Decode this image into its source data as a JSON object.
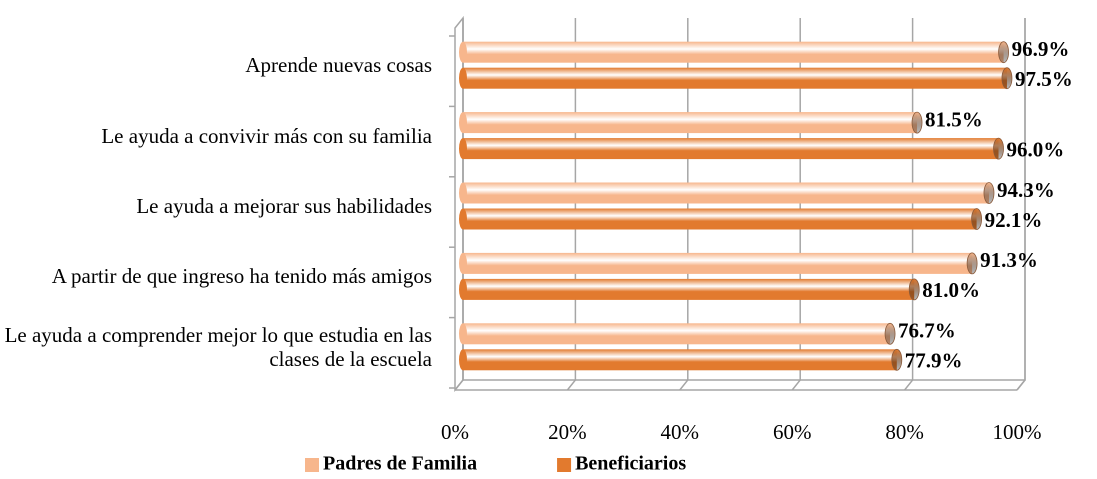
{
  "chart_data": {
    "type": "bar",
    "orientation": "horizontal",
    "categories": [
      "Aprende nuevas cosas",
      "Le ayuda a convivir más con su familia",
      "Le ayuda a mejorar sus habilidades ",
      "A partir de que ingreso ha tenido más amigos",
      "Le ayuda a comprender mejor lo que estudia en las clases de la escuela"
    ],
    "series": [
      {
        "name": "Padres de Familia",
        "color": "#f7b68c",
        "values": [
          96.9,
          81.5,
          94.3,
          91.3,
          76.7
        ],
        "value_labels": [
          "96.9%",
          "81.5%",
          "94.3%",
          "91.3%",
          "76.7%"
        ]
      },
      {
        "name": "Beneficiarios",
        "color": "#e27a2e",
        "values": [
          97.5,
          96.0,
          92.1,
          81.0,
          77.9
        ],
        "value_labels": [
          "97.5%",
          "96.0%",
          "92.1%",
          "81.0%",
          "77.9%"
        ]
      }
    ],
    "xlim": [
      0,
      100
    ],
    "xticks": [
      {
        "value": 0,
        "label": "0%"
      },
      {
        "value": 20,
        "label": "20%"
      },
      {
        "value": 40,
        "label": "40%"
      },
      {
        "value": 60,
        "label": "60%"
      },
      {
        "value": 80,
        "label": "80%"
      },
      {
        "value": 100,
        "label": "100%"
      }
    ],
    "grid": true,
    "legend": "bottom"
  }
}
